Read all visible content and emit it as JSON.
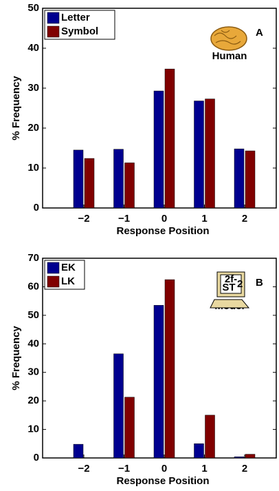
{
  "chart_data": [
    {
      "type": "bar",
      "annotation": "A",
      "icon_label": "Human",
      "y_label": "% Frequency",
      "x_label": "Response Position",
      "categories": [
        "−2",
        "−1",
        "0",
        "1",
        "2"
      ],
      "series": [
        {
          "name": "Letter",
          "color": "#00008f",
          "values": [
            14.5,
            14.7,
            29.3,
            26.8,
            14.8
          ]
        },
        {
          "name": "Symbol",
          "color": "#800000",
          "values": [
            12.4,
            11.3,
            34.8,
            27.3,
            14.3
          ]
        }
      ],
      "ylim": [
        0,
        50
      ],
      "yticks": [
        0,
        10,
        20,
        30,
        40,
        50
      ],
      "legend": "upper left"
    },
    {
      "type": "bar",
      "annotation": "B",
      "icon_label": "Model",
      "icon_text": [
        "2f-",
        "ST",
        "2"
      ],
      "y_label": "% Frequency",
      "x_label": "Response Position",
      "categories": [
        "−2",
        "−1",
        "0",
        "1",
        "2"
      ],
      "series": [
        {
          "name": "EK",
          "color": "#00008f",
          "values": [
            4.8,
            36.5,
            53.5,
            5.0,
            0.4
          ]
        },
        {
          "name": "LK",
          "color": "#800000",
          "values": [
            0,
            21.3,
            62.5,
            15.0,
            1.3
          ]
        }
      ],
      "ylim": [
        0,
        70
      ],
      "yticks": [
        0,
        10,
        20,
        30,
        40,
        50,
        60,
        70
      ],
      "legend": "upper left"
    }
  ]
}
